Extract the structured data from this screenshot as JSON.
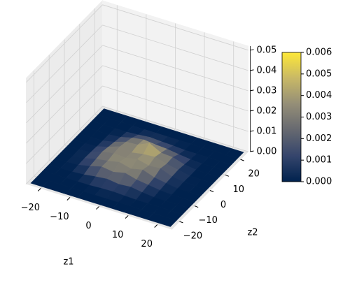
{
  "chart_data": {
    "type": "surface",
    "xlabel": "z1",
    "ylabel": "z2",
    "x": [
      -24,
      -20,
      -16,
      -12,
      -8,
      -4,
      0,
      4,
      8,
      12,
      16,
      20,
      24
    ],
    "y": [
      -24,
      -20,
      -16,
      -12,
      -8,
      -4,
      0,
      4,
      8,
      12,
      16,
      20,
      24
    ],
    "z": [
      [
        0,
        0,
        0,
        0,
        0,
        0,
        0,
        0,
        0,
        0,
        0,
        0,
        0
      ],
      [
        0,
        0,
        0,
        0,
        0,
        0,
        0,
        0,
        0,
        0,
        0,
        0,
        0
      ],
      [
        0,
        0,
        0,
        0,
        0,
        0.0003,
        0.0005,
        0.0002,
        0,
        0,
        0,
        0,
        0
      ],
      [
        0,
        0,
        0,
        0.0004,
        0.0012,
        0.0018,
        0.001,
        0.0015,
        0.0006,
        0,
        0,
        0,
        0
      ],
      [
        0,
        0,
        0.0003,
        0.0015,
        0.003,
        0.0022,
        0.0035,
        0.002,
        0.0012,
        0.0004,
        0,
        0,
        0
      ],
      [
        0,
        0,
        0.0005,
        0.002,
        0.0028,
        0.004,
        0.0025,
        0.0038,
        0.0018,
        0.0008,
        0,
        0,
        0
      ],
      [
        0,
        0,
        0.0004,
        0.0025,
        0.0035,
        0.003,
        0.0042,
        0.0028,
        0.0032,
        0.001,
        0.0002,
        0,
        0
      ],
      [
        0,
        0,
        0.0002,
        0.0018,
        0.0038,
        0.0026,
        0.0036,
        0.004,
        0.0024,
        0.0012,
        0,
        0,
        0
      ],
      [
        0,
        0,
        0,
        0.0012,
        0.003,
        0.0034,
        0.006,
        0.003,
        0.0026,
        0.0008,
        0,
        0,
        0
      ],
      [
        0,
        0,
        0,
        0.0005,
        0.002,
        0.0028,
        0.0022,
        0.0018,
        0.001,
        0.0003,
        0,
        0,
        0
      ],
      [
        0,
        0,
        0,
        0,
        0.0004,
        0.001,
        0.0006,
        0.0004,
        0,
        0,
        0,
        0,
        0
      ],
      [
        0,
        0,
        0,
        0,
        0,
        0,
        0,
        0,
        0,
        0,
        0,
        0,
        0
      ],
      [
        0,
        0,
        0,
        0,
        0,
        0,
        0,
        0,
        0,
        0,
        0,
        0,
        0
      ]
    ],
    "xlim": [
      -25,
      25
    ],
    "ylim": [
      -25,
      25
    ],
    "zlim": [
      0,
      0.052
    ],
    "xticks": [
      {
        "value": -20,
        "label": "−20"
      },
      {
        "value": -10,
        "label": "−10"
      },
      0,
      10,
      20
    ],
    "yticks": [
      {
        "value": -20,
        "label": "−20"
      },
      {
        "value": -10,
        "label": "−10"
      },
      0,
      10,
      20
    ],
    "zticks": [
      {
        "value": 0,
        "label": "0.00"
      },
      {
        "value": 0.01,
        "label": "0.01"
      },
      {
        "value": 0.02,
        "label": "0.02"
      },
      {
        "value": 0.03,
        "label": "0.03"
      },
      {
        "value": 0.04,
        "label": "0.04"
      },
      {
        "value": 0.05,
        "label": "0.05"
      }
    ],
    "clim": [
      0,
      0.006
    ],
    "cticks": [
      {
        "value": 0,
        "label": "0.000"
      },
      {
        "value": 0.001,
        "label": "0.001"
      },
      {
        "value": 0.002,
        "label": "0.002"
      },
      {
        "value": 0.003,
        "label": "0.003"
      },
      {
        "value": 0.004,
        "label": "0.004"
      },
      {
        "value": 0.005,
        "label": "0.005"
      },
      {
        "value": 0.006,
        "label": "0.006"
      }
    ],
    "colormap": [
      "#00224e",
      "#35456c",
      "#666970",
      "#948e77",
      "#c8b866",
      "#fee838"
    ],
    "grid": true
  }
}
